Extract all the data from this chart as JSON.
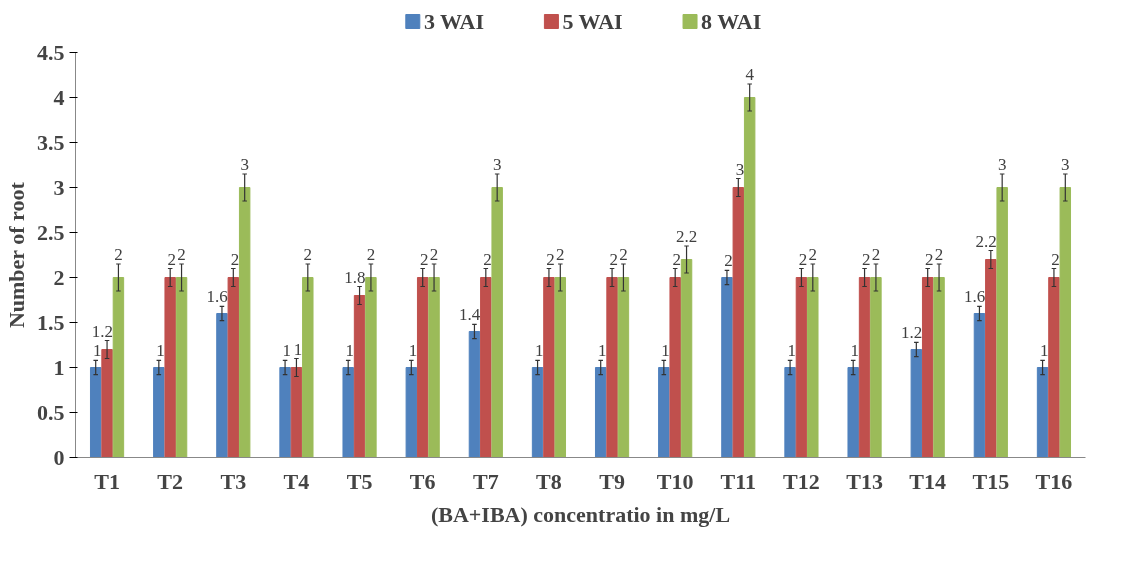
{
  "chart_data": {
    "type": "bar",
    "xlabel": "(BA+IBA) concentratio in mg/L",
    "ylabel": "Number of root",
    "categories": [
      "T1",
      "T2",
      "T3",
      "T4",
      "T5",
      "T6",
      "T7",
      "T8",
      "T9",
      "T10",
      "T11",
      "T12",
      "T13",
      "T14",
      "T15",
      "T16"
    ],
    "series": [
      {
        "name": "3 WAI",
        "color": "#4f81bd",
        "values": [
          1,
          1,
          1.6,
          1,
          1,
          1,
          1.4,
          1,
          1,
          1,
          2,
          1,
          1,
          1.2,
          1.6,
          1
        ],
        "errors": [
          0.08,
          0.08,
          0.08,
          0.08,
          0.08,
          0.08,
          0.08,
          0.08,
          0.08,
          0.08,
          0.08,
          0.08,
          0.08,
          0.08,
          0.08,
          0.08
        ]
      },
      {
        "name": "5 WAI",
        "color": "#c0504d",
        "values": [
          1.2,
          2,
          2,
          1,
          1.8,
          2,
          2,
          2,
          2,
          2,
          3,
          2,
          2,
          2,
          2.2,
          2
        ],
        "errors": [
          0.1,
          0.1,
          0.1,
          0.1,
          0.1,
          0.1,
          0.1,
          0.1,
          0.1,
          0.1,
          0.1,
          0.1,
          0.1,
          0.1,
          0.1,
          0.1
        ]
      },
      {
        "name": "8 WAI",
        "color": "#9bbb59",
        "values": [
          2,
          2,
          3,
          2,
          2,
          2,
          3,
          2,
          2,
          2.2,
          4,
          2,
          2,
          2,
          3,
          3
        ],
        "errors": [
          0.15,
          0.15,
          0.15,
          0.15,
          0.15,
          0.15,
          0.15,
          0.15,
          0.15,
          0.15,
          0.15,
          0.15,
          0.15,
          0.15,
          0.15,
          0.15
        ]
      }
    ],
    "ylim": [
      0,
      4.5
    ],
    "yticks": [
      0,
      0.5,
      1,
      1.5,
      2,
      2.5,
      3,
      3.5,
      4,
      4.5
    ],
    "data_labels": true,
    "grid": false,
    "legend": "top"
  }
}
